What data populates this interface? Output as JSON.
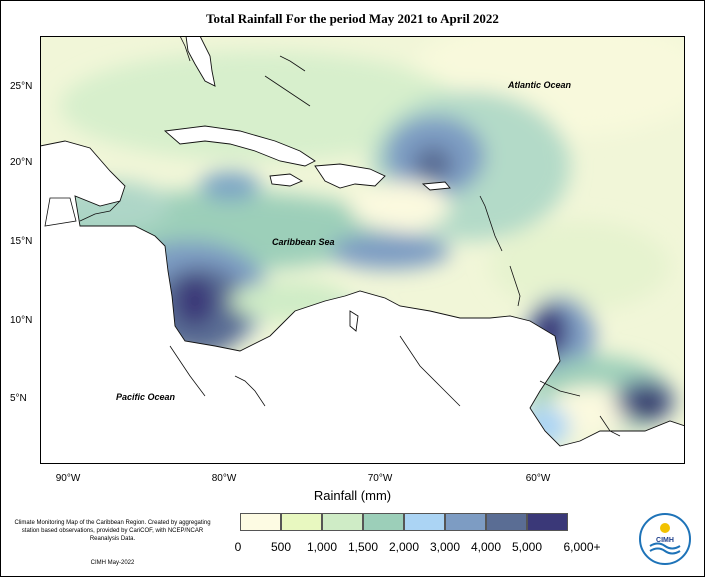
{
  "title": "Total Rainfall For the period May 2021 to April 2022",
  "map": {
    "latitude_labels": [
      "25°N",
      "20°N",
      "15°N",
      "10°N",
      "5°N"
    ],
    "longitude_labels": [
      "90°W",
      "80°W",
      "70°W",
      "60°W"
    ],
    "ocean_labels": {
      "atlantic": "Atlantic Ocean",
      "caribbean": "Caribbean Sea",
      "pacific": "Pacific Ocean"
    }
  },
  "legend": {
    "title": "Rainfall (mm)",
    "labels": [
      "0",
      "500",
      "1,000",
      "1,500",
      "2,000",
      "3,000",
      "4,000",
      "5,000",
      "6,000+"
    ],
    "colors": [
      "#fdfbe3",
      "#e8f8c0",
      "#cfecc6",
      "#9ccfb9",
      "#abd4f4",
      "#7d9cc3",
      "#5a6d94",
      "#3a3878"
    ]
  },
  "credits": {
    "text": "Climate Monitoring Map of the Caribbean Region. Created by aggregating station based observations, provided by CariCOF, with NCEP/NCAR Reanalysis Data.",
    "footer": "CIMH May-2022",
    "logo_text": "CIMH"
  }
}
